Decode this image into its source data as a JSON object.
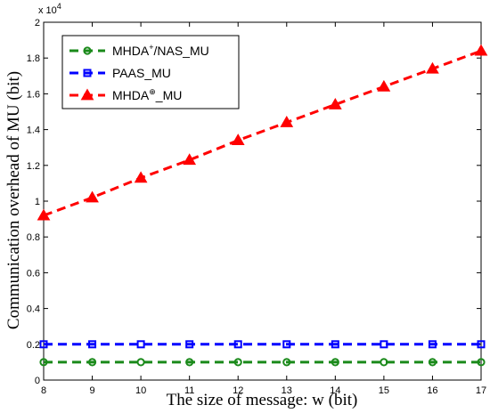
{
  "chart_data": {
    "type": "line",
    "xlabel": "The size of message: w (bit)",
    "ylabel": "Communication overhead of MU (bit)",
    "x": [
      8,
      9,
      10,
      11,
      12,
      13,
      14,
      15,
      16,
      17
    ],
    "xlim": [
      8,
      17
    ],
    "ylim": [
      0,
      20000
    ],
    "y_exponent_label": "x 10",
    "y_exponent_power": "4",
    "xticks": [
      "8",
      "9",
      "10",
      "11",
      "12",
      "13",
      "14",
      "15",
      "16",
      "17"
    ],
    "yticks": [
      "0",
      "0.2",
      "0.4",
      "0.6",
      "0.8",
      "1",
      "1.2",
      "1.4",
      "1.6",
      "1.8",
      "2"
    ],
    "grid": false,
    "legend_position": "top-left",
    "series": [
      {
        "name": "MHDA",
        "name_sup": "+",
        "name_suffix": "/NAS_MU",
        "color": "#1a8a1a",
        "marker": "circle",
        "values": [
          1000,
          1000,
          1000,
          1000,
          1000,
          1000,
          1000,
          1000,
          1000,
          1000
        ]
      },
      {
        "name": "PAAS_MU",
        "name_sup": "",
        "name_suffix": "",
        "color": "#0000ff",
        "marker": "square",
        "values": [
          2000,
          2000,
          2000,
          2000,
          2000,
          2000,
          2000,
          2000,
          2000,
          2000
        ]
      },
      {
        "name": "MHDA",
        "name_sup": "⊕",
        "name_suffix": "_MU",
        "color": "#ff0000",
        "marker": "triangle",
        "values": [
          9200,
          10200,
          11300,
          12300,
          13400,
          14400,
          15400,
          16400,
          17400,
          18400
        ]
      }
    ]
  }
}
